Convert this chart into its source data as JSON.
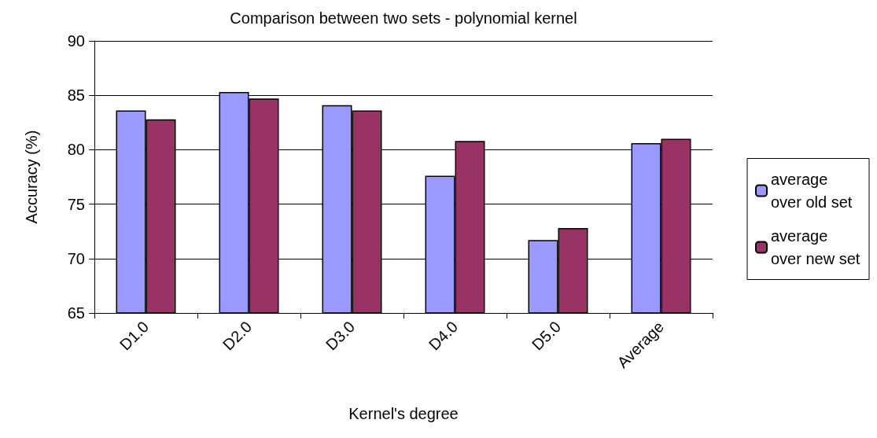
{
  "chart_data": {
    "type": "bar",
    "title": "Comparison between two sets - polynomial kernel",
    "xlabel": "Kernel's degree",
    "ylabel": "Accuracy (%)",
    "categories": [
      "D1.0",
      "D2.0",
      "D3.0",
      "D4.0",
      "D5.0",
      "Average"
    ],
    "series": [
      {
        "name": "average over old set",
        "color": "#9999ff",
        "values": [
          83.6,
          85.3,
          84.1,
          77.6,
          71.7,
          80.6
        ]
      },
      {
        "name": "average over new set",
        "color": "#993366",
        "values": [
          82.8,
          84.7,
          83.6,
          80.8,
          72.8,
          81.0
        ]
      }
    ],
    "ylim": [
      65,
      90
    ],
    "yticks": [
      65,
      70,
      75,
      80,
      85,
      90
    ],
    "grid": "y",
    "legend": "right"
  }
}
